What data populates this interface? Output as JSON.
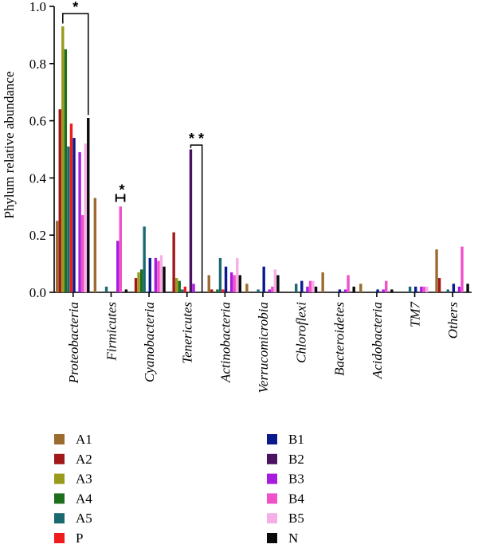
{
  "chart_data": {
    "type": "bar",
    "ylabel": "Phylum relative abundance",
    "ylim": [
      0,
      1.0
    ],
    "yticks": [
      "0.0",
      "0.2",
      "0.4",
      "0.6",
      "0.8",
      "1.0"
    ],
    "categories": [
      "Proteobacteria",
      "Firmicutes",
      "Cyanobacteria",
      "Tenericutes",
      "Actinobacteria",
      "Verrucomicrobia",
      "Chloroflexi",
      "Bacteroidetes",
      "Acidobacteria",
      "TM7",
      "Others"
    ],
    "series": [
      {
        "name": "A1",
        "color": "#9c6b30",
        "values": [
          0.25,
          0.33,
          0.0,
          0.0,
          0.06,
          0.03,
          0.0,
          0.07,
          0.03,
          0.0,
          0.15
        ]
      },
      {
        "name": "A2",
        "color": "#a01818",
        "values": [
          0.64,
          0.0,
          0.05,
          0.21,
          0.01,
          0.0,
          0.0,
          0.0,
          0.0,
          0.0,
          0.05
        ]
      },
      {
        "name": "A3",
        "color": "#9a9a1c",
        "values": [
          0.93,
          0.0,
          0.07,
          0.05,
          0.0,
          0.0,
          0.0,
          0.0,
          0.0,
          0.0,
          0.0
        ]
      },
      {
        "name": "A4",
        "color": "#1e6e1e",
        "values": [
          0.85,
          0.0,
          0.08,
          0.04,
          0.01,
          0.0,
          0.0,
          0.0,
          0.0,
          0.0,
          0.0
        ]
      },
      {
        "name": "A5",
        "color": "#1a6870",
        "values": [
          0.51,
          0.02,
          0.23,
          0.01,
          0.12,
          0.01,
          0.03,
          0.0,
          0.0,
          0.02,
          0.01
        ]
      },
      {
        "name": "P",
        "color": "#f01c1c",
        "values": [
          0.59,
          0.0,
          0.0,
          0.02,
          0.01,
          0.0,
          0.0,
          0.0,
          0.0,
          0.0,
          0.0
        ]
      },
      {
        "name": "B1",
        "color": "#0a1a8c",
        "values": [
          0.54,
          0.0,
          0.12,
          0.0,
          0.09,
          0.09,
          0.04,
          0.01,
          0.01,
          0.02,
          0.03
        ]
      },
      {
        "name": "B2",
        "color": "#4a1260",
        "values": [
          0.0,
          0.0,
          0.0,
          0.5,
          0.0,
          0.0,
          0.0,
          0.0,
          0.0,
          0.0,
          0.0
        ]
      },
      {
        "name": "B3",
        "color": "#a81ce0",
        "values": [
          0.49,
          0.18,
          0.12,
          0.03,
          0.07,
          0.01,
          0.02,
          0.01,
          0.01,
          0.02,
          0.02
        ]
      },
      {
        "name": "B4",
        "color": "#f050c8",
        "values": [
          0.27,
          0.3,
          0.11,
          0.0,
          0.06,
          0.02,
          0.04,
          0.06,
          0.04,
          0.02,
          0.16
        ]
      },
      {
        "name": "B5",
        "color": "#f6aee6",
        "values": [
          0.52,
          0.0,
          0.13,
          0.0,
          0.12,
          0.08,
          0.04,
          0.0,
          0.0,
          0.02,
          0.0
        ]
      },
      {
        "name": "N",
        "color": "#0a0a0a",
        "values": [
          0.61,
          0.01,
          0.09,
          0.0,
          0.06,
          0.06,
          0.02,
          0.02,
          0.01,
          0.0,
          0.03
        ]
      }
    ],
    "significance": [
      {
        "label": "*",
        "category_index": 0
      },
      {
        "label": "*",
        "category_index": 1
      },
      {
        "label": "* *",
        "category_index": 3
      }
    ],
    "legend_position": "bottom"
  }
}
